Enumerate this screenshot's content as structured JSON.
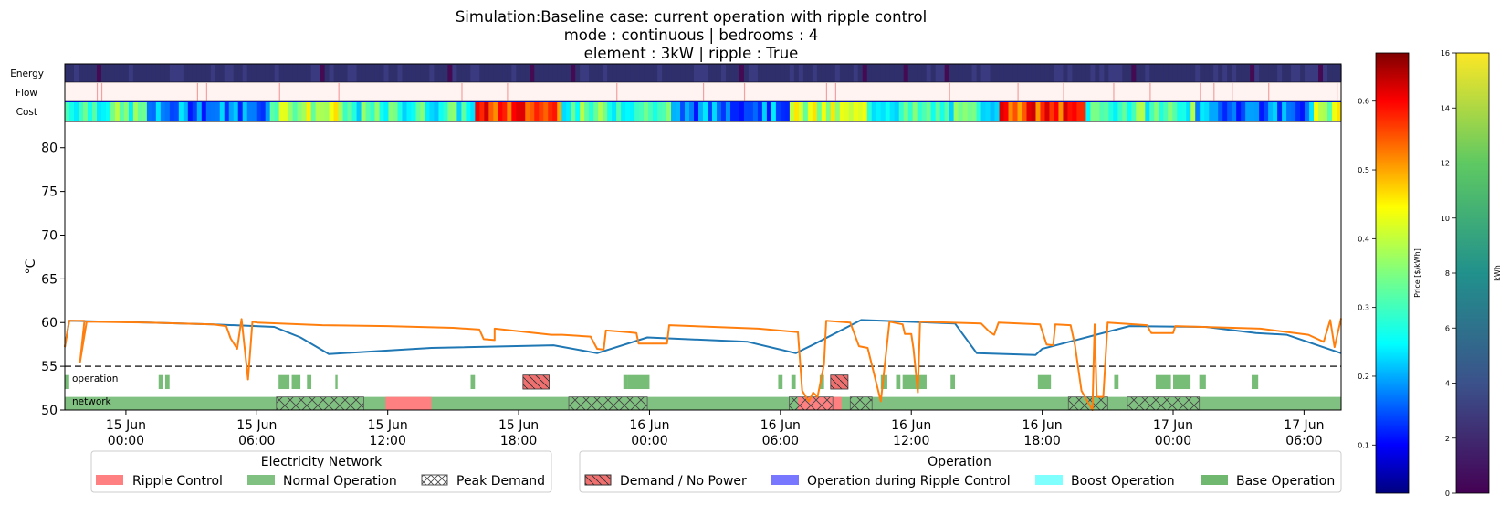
{
  "chart_data": {
    "type": "line",
    "title": [
      "Simulation:Baseline case: current operation with ripple control",
      "mode : continuous | bedrooms : 4",
      "element : 3kW | ripple : True"
    ],
    "ylabel": "°C",
    "ylim": [
      50,
      83
    ],
    "y_ticks": [
      "50",
      "55",
      "60",
      "65",
      "70",
      "75",
      "80"
    ],
    "x_range_hours": [
      -2.8,
      55.7
    ],
    "x_ticks": [
      {
        "h": 0,
        "line1": "15 Jun",
        "line2": "00:00"
      },
      {
        "h": 6,
        "line1": "15 Jun",
        "line2": "06:00"
      },
      {
        "h": 12,
        "line1": "15 Jun",
        "line2": "12:00"
      },
      {
        "h": 18,
        "line1": "15 Jun",
        "line2": "18:00"
      },
      {
        "h": 24,
        "line1": "16 Jun",
        "line2": "00:00"
      },
      {
        "h": 30,
        "line1": "16 Jun",
        "line2": "06:00"
      },
      {
        "h": 36,
        "line1": "16 Jun",
        "line2": "12:00"
      },
      {
        "h": 42,
        "line1": "16 Jun",
        "line2": "18:00"
      },
      {
        "h": 48,
        "line1": "17 Jun",
        "line2": "00:00"
      },
      {
        "h": 54,
        "line1": "17 Jun",
        "line2": "06:00"
      }
    ],
    "setpoint_line": 55,
    "heatmap_rows": [
      "Energy",
      "Flow",
      "Cost"
    ],
    "colors": {
      "blue_line": "#1f77b4",
      "orange_line": "#ff7f0e",
      "ripple": "#ff8080",
      "normal": "#80c080",
      "base": "#70b870",
      "boost": "#80ffff",
      "rc_operation": "#7777ff",
      "demand": "#f07070"
    },
    "series": [
      {
        "key": "blue",
        "points": [
          [
            -2.8,
            57.2
          ],
          [
            -2.6,
            60.2
          ],
          [
            1.0,
            60.0
          ],
          [
            4.0,
            59.8
          ],
          [
            6.8,
            59.5
          ],
          [
            7.3,
            59.0
          ],
          [
            8.0,
            58.3
          ],
          [
            9.3,
            56.4
          ],
          [
            14.0,
            57.1
          ],
          [
            19.6,
            57.4
          ],
          [
            21.6,
            56.5
          ],
          [
            23.9,
            58.3
          ],
          [
            28.5,
            57.8
          ],
          [
            30.7,
            56.5
          ],
          [
            31.6,
            57.6
          ],
          [
            33.7,
            60.3
          ],
          [
            38.0,
            59.9
          ],
          [
            39.0,
            56.5
          ],
          [
            41.7,
            56.3
          ],
          [
            42.0,
            57.0
          ],
          [
            46.0,
            59.6
          ],
          [
            49.5,
            59.5
          ],
          [
            51.8,
            58.8
          ],
          [
            53.2,
            58.6
          ],
          [
            55.7,
            56.5
          ]
        ]
      },
      {
        "key": "orange",
        "points": [
          [
            -2.8,
            57.2
          ],
          [
            -2.6,
            60.2
          ],
          [
            -1.9,
            60.2
          ],
          [
            -2.1,
            55.5
          ],
          [
            -1.8,
            60.1
          ],
          [
            1.0,
            60.0
          ],
          [
            4.0,
            59.8
          ],
          [
            4.6,
            59.6
          ],
          [
            4.8,
            58.2
          ],
          [
            5.1,
            57.0
          ],
          [
            5.3,
            60.4
          ],
          [
            5.6,
            53.5
          ],
          [
            5.8,
            60.1
          ],
          [
            6.0,
            60.0
          ],
          [
            9.0,
            59.7
          ],
          [
            12.0,
            59.6
          ],
          [
            15.0,
            59.4
          ],
          [
            16.2,
            59.2
          ],
          [
            16.4,
            58.1
          ],
          [
            16.9,
            58.0
          ],
          [
            16.9,
            59.3
          ],
          [
            19.5,
            58.6
          ],
          [
            20.0,
            58.6
          ],
          [
            21.3,
            58.4
          ],
          [
            21.6,
            57.0
          ],
          [
            21.9,
            56.9
          ],
          [
            22.0,
            59.1
          ],
          [
            23.0,
            58.9
          ],
          [
            23.4,
            58.8
          ],
          [
            23.5,
            57.6
          ],
          [
            24.8,
            57.6
          ],
          [
            24.9,
            59.7
          ],
          [
            29.0,
            59.3
          ],
          [
            30.8,
            58.9
          ],
          [
            31.0,
            52.2
          ],
          [
            31.3,
            51.0
          ],
          [
            31.5,
            52.0
          ],
          [
            31.7,
            51.5
          ],
          [
            32.0,
            55.2
          ],
          [
            32.1,
            60.2
          ],
          [
            33.2,
            60.0
          ],
          [
            33.6,
            57.3
          ],
          [
            34.0,
            57.1
          ],
          [
            34.6,
            51.0
          ],
          [
            35.0,
            60.1
          ],
          [
            35.6,
            59.8
          ],
          [
            35.7,
            58.7
          ],
          [
            36.0,
            58.7
          ],
          [
            36.1,
            57.0
          ],
          [
            36.3,
            52.0
          ],
          [
            36.4,
            60.1
          ],
          [
            39.2,
            59.9
          ],
          [
            39.6,
            58.9
          ],
          [
            39.8,
            58.6
          ],
          [
            40.0,
            60.0
          ],
          [
            41.9,
            59.8
          ],
          [
            42.2,
            57.5
          ],
          [
            42.5,
            57.4
          ],
          [
            42.6,
            59.8
          ],
          [
            43.3,
            59.7
          ],
          [
            43.5,
            57.4
          ],
          [
            43.8,
            52.2
          ],
          [
            44.3,
            50.0
          ],
          [
            44.4,
            59.8
          ],
          [
            44.5,
            51.5
          ],
          [
            44.8,
            51.5
          ],
          [
            45.0,
            60.0
          ],
          [
            46.8,
            59.7
          ],
          [
            47.0,
            58.8
          ],
          [
            48.0,
            58.8
          ],
          [
            48.1,
            59.6
          ],
          [
            52.0,
            59.3
          ],
          [
            54.2,
            58.6
          ],
          [
            54.9,
            57.8
          ],
          [
            55.2,
            60.3
          ],
          [
            55.4,
            57.2
          ],
          [
            55.7,
            60.5
          ]
        ]
      }
    ],
    "operation_label": "operation",
    "network_label": "network",
    "operation_base_bars": [
      [
        -2.8,
        -2.6
      ],
      [
        1.5,
        1.7
      ],
      [
        1.8,
        2.0
      ],
      [
        7.0,
        7.5
      ],
      [
        7.6,
        8.0
      ],
      [
        8.3,
        8.5
      ],
      [
        9.6,
        9.7
      ],
      [
        15.8,
        16.0
      ],
      [
        22.8,
        23.0
      ],
      [
        23.0,
        24.0
      ],
      [
        29.9,
        30.1
      ],
      [
        30.5,
        30.7
      ],
      [
        31.8,
        32.0
      ],
      [
        34.6,
        34.9
      ],
      [
        35.3,
        35.5
      ],
      [
        35.6,
        36.7
      ],
      [
        37.8,
        38.0
      ],
      [
        41.8,
        42.4
      ],
      [
        45.3,
        45.5
      ],
      [
        47.2,
        47.9
      ],
      [
        48.0,
        48.8
      ],
      [
        49.2,
        49.5
      ],
      [
        51.6,
        51.9
      ],
      [
        56.1,
        57.1
      ]
    ],
    "operation_demand_bars": [
      [
        18.2,
        19.4
      ],
      [
        32.3,
        33.1
      ]
    ],
    "network_ripple": [
      [
        11.9,
        14.0
      ],
      [
        30.8,
        32.8
      ]
    ],
    "network_peak": [
      [
        6.9,
        10.9
      ],
      [
        20.3,
        23.9
      ],
      [
        30.4,
        32.4
      ],
      [
        33.2,
        34.2
      ],
      [
        43.2,
        45.0
      ],
      [
        45.9,
        49.2
      ]
    ],
    "legend_network": {
      "title": "Electricity Network",
      "items": [
        "Ripple Control",
        "Normal Operation",
        "Peak Demand"
      ]
    },
    "legend_operation": {
      "title": "Operation",
      "items": [
        "Demand / No Power",
        "Operation during Ripple Control",
        "Boost Operation",
        "Base Operation"
      ]
    },
    "colorbar_price": {
      "label": "Price [$/kWh]",
      "ticks": [
        "0.1",
        "0.2",
        "0.3",
        "0.4",
        "0.5",
        "0.6"
      ],
      "range": [
        0.03,
        0.67
      ],
      "colormap": "jet"
    },
    "colorbar_energy": {
      "label": "kWh",
      "ticks": [
        "0",
        "2",
        "4",
        "6",
        "8",
        "10",
        "12",
        "14",
        "16"
      ],
      "range": [
        0,
        16
      ],
      "colormap": "viridis"
    }
  }
}
